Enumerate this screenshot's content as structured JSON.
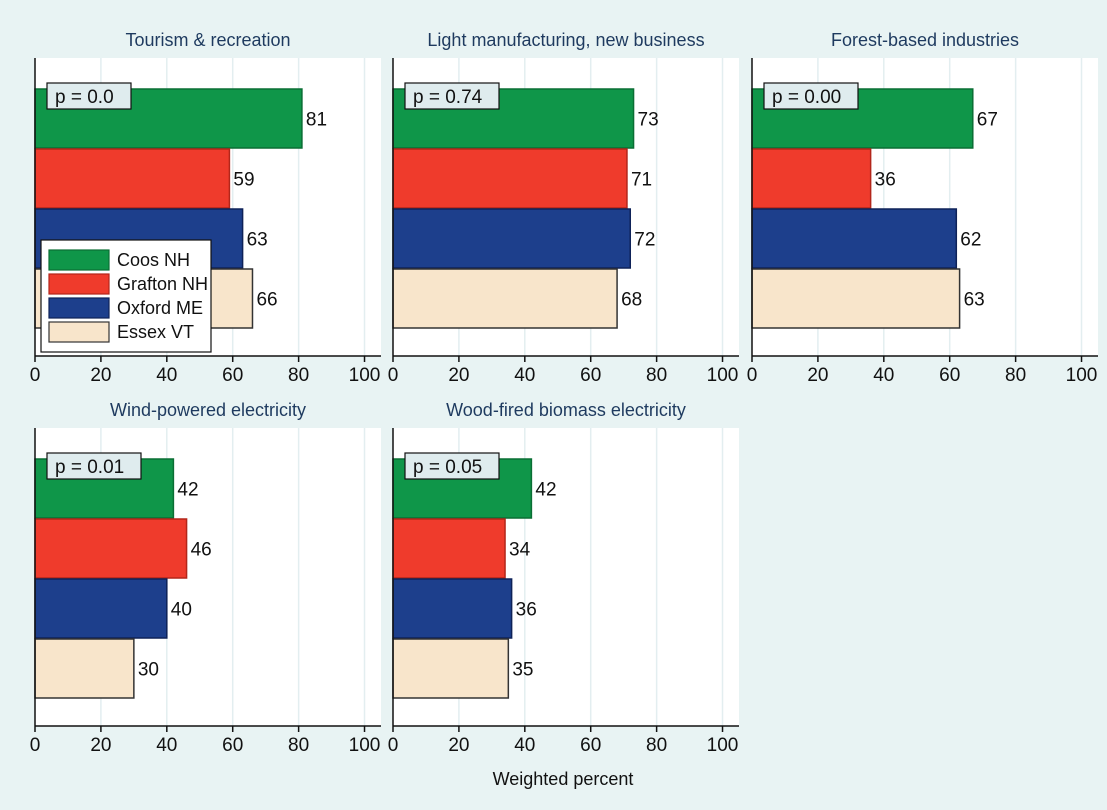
{
  "figure": {
    "xlabel": "Weighted percent",
    "legend": {
      "placement": "inside-left of first panel",
      "entries": [
        {
          "name": "Coos NH",
          "color": "#0f9649"
        },
        {
          "name": "Grafton NH",
          "color": "#ef3b2c"
        },
        {
          "name": "Oxford ME",
          "color": "#1d3f8c"
        },
        {
          "name": "Essex VT",
          "color": "#f8e5cb"
        }
      ]
    },
    "colors": {
      "background": "#e8f3f3",
      "plot_bg": "#ffffff",
      "grid": "#e3eef0",
      "title": "#1e3a5f",
      "p_box": "#dfecee"
    }
  },
  "chart_data": [
    {
      "type": "bar",
      "orientation": "horizontal",
      "title": "Tourism & recreation",
      "annotation": "p = 0.0",
      "categories": [
        "Coos NH",
        "Grafton NH",
        "Oxford ME",
        "Essex VT"
      ],
      "values": [
        81,
        59,
        63,
        66
      ],
      "xlim": [
        0,
        105
      ],
      "xticks": [
        0,
        20,
        40,
        60,
        80,
        100
      ],
      "grid": true
    },
    {
      "type": "bar",
      "orientation": "horizontal",
      "title": "Light manufacturing, new business",
      "annotation": "p = 0.74",
      "categories": [
        "Coos NH",
        "Grafton NH",
        "Oxford ME",
        "Essex VT"
      ],
      "values": [
        73,
        71,
        72,
        68
      ],
      "xlim": [
        0,
        105
      ],
      "xticks": [
        0,
        20,
        40,
        60,
        80,
        100
      ],
      "grid": true
    },
    {
      "type": "bar",
      "orientation": "horizontal",
      "title": "Forest-based industries",
      "annotation": "p = 0.00",
      "categories": [
        "Coos NH",
        "Grafton NH",
        "Oxford ME",
        "Essex VT"
      ],
      "values": [
        67,
        36,
        62,
        63
      ],
      "xlim": [
        0,
        105
      ],
      "xticks": [
        0,
        20,
        40,
        60,
        80,
        100
      ],
      "grid": true
    },
    {
      "type": "bar",
      "orientation": "horizontal",
      "title": "Wind-powered electricity",
      "annotation": "p = 0.01",
      "categories": [
        "Coos NH",
        "Grafton NH",
        "Oxford ME",
        "Essex VT"
      ],
      "values": [
        42,
        46,
        40,
        30
      ],
      "xlim": [
        0,
        105
      ],
      "xticks": [
        0,
        20,
        40,
        60,
        80,
        100
      ],
      "grid": true
    },
    {
      "type": "bar",
      "orientation": "horizontal",
      "title": "Wood-fired biomass electricity",
      "annotation": "p = 0.05",
      "categories": [
        "Coos NH",
        "Grafton NH",
        "Oxford ME",
        "Essex VT"
      ],
      "values": [
        42,
        34,
        36,
        35
      ],
      "xlim": [
        0,
        105
      ],
      "xticks": [
        0,
        20,
        40,
        60,
        80,
        100
      ],
      "grid": true
    }
  ]
}
